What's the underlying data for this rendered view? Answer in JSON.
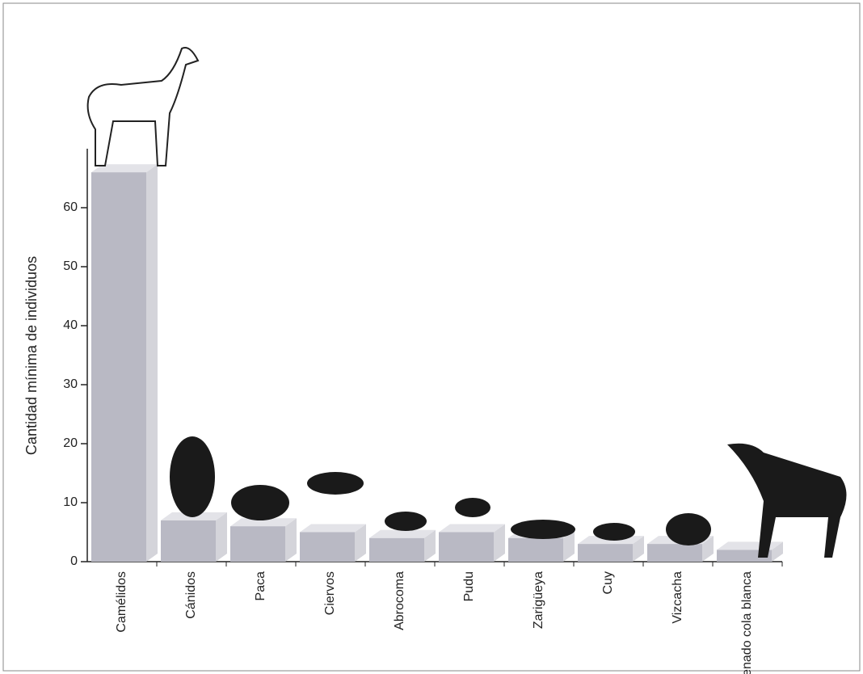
{
  "chart_data": {
    "type": "bar",
    "ylabel": "Cantidad mínima de individuos",
    "categories": [
      "Camélidos",
      "Cánidos",
      "Paca",
      "Ciervos",
      "Abrocoma",
      "Pudu",
      "Zarigüeya",
      "Cuy",
      "Vizcacha",
      "Venado cola blanca"
    ],
    "values": [
      66,
      7,
      6,
      5,
      4,
      5,
      4,
      3,
      3,
      2
    ],
    "color": "#b9b9c4",
    "ylim": [
      0,
      70
    ],
    "yticks": [
      0,
      10,
      20,
      30,
      40,
      50,
      60
    ],
    "grid": false
  }
}
